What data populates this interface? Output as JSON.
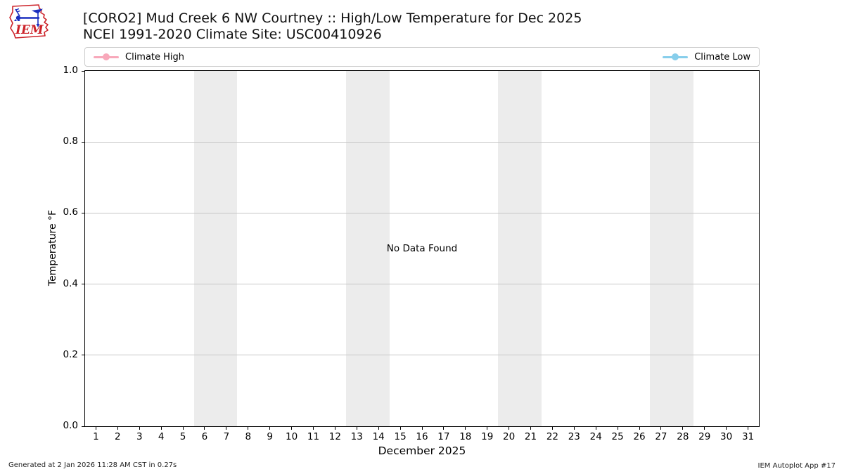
{
  "header": {
    "title_line1": "[CORO2] Mud Creek 6 NW Courtney :: High/Low Temperature for Dec 2025",
    "title_line2": "NCEI 1991-2020 Climate Site: USC00410926",
    "logo_text": "IEM"
  },
  "legend": {
    "entries": [
      {
        "label": "Climate High",
        "color": "#f8a8ba"
      },
      {
        "label": "Climate Low",
        "color": "#87ceeb"
      }
    ]
  },
  "chart_data": {
    "type": "line",
    "title": "[CORO2] Mud Creek 6 NW Courtney :: High/Low Temperature for Dec 2025",
    "subtitle": "NCEI 1991-2020 Climate Site: USC00410926",
    "xlabel": "December 2025",
    "ylabel": "Temperature °F",
    "no_data_text": "No Data Found",
    "xlim": [
      0.5,
      31.5
    ],
    "ylim": [
      0.0,
      1.0
    ],
    "xticks": [
      1,
      2,
      3,
      4,
      5,
      6,
      7,
      8,
      9,
      10,
      11,
      12,
      13,
      14,
      15,
      16,
      17,
      18,
      19,
      20,
      21,
      22,
      23,
      24,
      25,
      26,
      27,
      28,
      29,
      30,
      31
    ],
    "yticks": [
      0.0,
      0.2,
      0.4,
      0.6,
      0.8,
      1.0
    ],
    "grid": "horizontal",
    "gridline_color": "#c6c6c6",
    "legend_position": "top, full-width, entries at left and right ends",
    "series": [
      {
        "name": "Climate High",
        "color": "#f8a8ba",
        "marker": "circle",
        "values": []
      },
      {
        "name": "Climate Low",
        "color": "#87ceeb",
        "marker": "circle",
        "values": []
      }
    ],
    "weekend_bands": [
      [
        5.5,
        7.5
      ],
      [
        12.5,
        14.5
      ],
      [
        19.5,
        21.5
      ],
      [
        26.5,
        28.5
      ]
    ],
    "band_color": "#ececec"
  },
  "footer": {
    "left": "Generated at 2 Jan 2026 11:28 AM CST in 0.27s",
    "right": "IEM Autoplot App #17"
  }
}
